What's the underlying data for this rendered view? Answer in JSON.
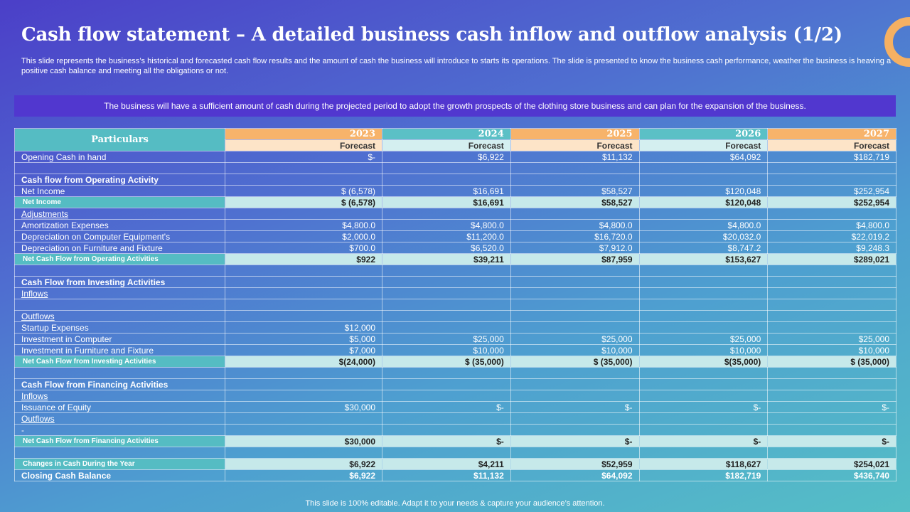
{
  "title": "Cash flow statement – A detailed business cash inflow and outflow analysis (1/2)",
  "subtitle": "This slide represents the business’s historical and forecasted cash flow results and the amount of cash the business will introduce to starts its operations. The slide is presented to know the business cash performance, weather the business is heaving a positive cash balance and meeting all the obligations or not.",
  "banner": "The business will have a sufficient amount of cash during the projected period to adopt the growth prospects of the clothing store business and can plan for the expansion of the business.",
  "footer": "This slide is 100% editable. Adapt it to your needs & capture your audience’s attention.",
  "colors": {
    "orange": "#f7b36a",
    "teal": "#55bcc3",
    "banner": "#5137cf",
    "subtotal_fill": "#c6e9ea"
  },
  "decoration": "orange-ring",
  "table": {
    "header_label": "Particulars",
    "years": [
      "2023",
      "2024",
      "2025",
      "2026",
      "2027"
    ],
    "forecast_label": "Forecast",
    "rows": [
      {
        "label": "Opening Cash in hand",
        "style": "ind-s",
        "values": [
          "$-",
          "$6,922",
          "$11,132",
          "$64,092",
          "$182,719"
        ]
      },
      {
        "label": "",
        "style": "blank",
        "values": [
          "",
          "",
          "",
          "",
          ""
        ]
      },
      {
        "label": "Cash flow from Operating Activity",
        "style": "section",
        "values": [
          "",
          "",
          "",
          "",
          ""
        ]
      },
      {
        "label": "Net Income",
        "style": "ind",
        "values": [
          "$ (6,578)",
          "$16,691",
          "$58,527",
          "$120,048",
          "$252,954"
        ]
      },
      {
        "label": "Net Income",
        "style": "subtotal",
        "values": [
          "$ (6,578)",
          "$16,691",
          "$58,527",
          "$120,048",
          "$252,954"
        ]
      },
      {
        "label": "Adjustments",
        "style": "underline",
        "values": [
          "",
          "",
          "",
          "",
          ""
        ]
      },
      {
        "label": "Amortization Expenses",
        "style": "ind",
        "values": [
          "$4,800.0",
          "$4,800.0",
          "$4,800.0",
          "$4,800.0",
          "$4,800.0"
        ]
      },
      {
        "label": "Depreciation on Computer Equipment's",
        "style": "ind",
        "values": [
          "$2,000.0",
          "$11,200.0",
          "$16,720.0",
          "$20,032.0",
          "$22,019.2"
        ]
      },
      {
        "label": "Depreciation on Furniture and Fixture",
        "style": "ind",
        "values": [
          "$700.0",
          "$6,520.0",
          "$7,912.0",
          "$8,747.2",
          "$9,248.3"
        ]
      },
      {
        "label": "Net Cash Flow from Operating Activities",
        "style": "subtotal",
        "values": [
          "$922",
          "$39,211",
          "$87,959",
          "$153,627",
          "$289,021"
        ]
      },
      {
        "label": "",
        "style": "blank",
        "values": [
          "",
          "",
          "",
          "",
          ""
        ]
      },
      {
        "label": "Cash Flow from Investing Activities",
        "style": "bold",
        "values": [
          "",
          "",
          "",
          "",
          ""
        ]
      },
      {
        "label": "Inflows",
        "style": "underline",
        "values": [
          "",
          "",
          "",
          "",
          ""
        ]
      },
      {
        "label": "",
        "style": "blank",
        "values": [
          "",
          "",
          "",
          "",
          ""
        ]
      },
      {
        "label": "Outflows",
        "style": "underline",
        "values": [
          "",
          "",
          "",
          "",
          ""
        ]
      },
      {
        "label": "Startup Expenses",
        "style": "plain",
        "values": [
          "$12,000",
          "",
          "",
          "",
          ""
        ]
      },
      {
        "label": "Investment in Computer",
        "style": "plain",
        "values": [
          "$5,000",
          "$25,000",
          "$25,000",
          "$25,000",
          "$25,000"
        ]
      },
      {
        "label": "Investment in Furniture and Fixture",
        "style": "plain",
        "values": [
          "$7,000",
          "$10,000",
          "$10,000",
          "$10,000",
          "$10,000"
        ]
      },
      {
        "label": "Net Cash Flow from Investing Activities",
        "style": "subtotal",
        "values": [
          "$(24,000)",
          "$ (35,000)",
          "$ (35,000)",
          "$(35,000)",
          "$ (35,000)"
        ]
      },
      {
        "label": "",
        "style": "blank",
        "values": [
          "",
          "",
          "",
          "",
          ""
        ]
      },
      {
        "label": "Cash Flow from Financing  Activities",
        "style": "bold",
        "values": [
          "",
          "",
          "",
          "",
          ""
        ]
      },
      {
        "label": "Inflows",
        "style": "underline",
        "values": [
          "",
          "",
          "",
          "",
          ""
        ]
      },
      {
        "label": "Issuance of Equity",
        "style": "plain",
        "values": [
          "$30,000",
          "$-",
          "$-",
          "$-",
          "$-"
        ]
      },
      {
        "label": "Outflows",
        "style": "underline",
        "values": [
          "",
          "",
          "",
          "",
          ""
        ]
      },
      {
        "label": "-",
        "style": "plain",
        "values": [
          "",
          "",
          "",
          "",
          ""
        ]
      },
      {
        "label": "Net Cash Flow from Financing Activities",
        "style": "subtotal",
        "values": [
          "$30,000",
          "$-",
          "$-",
          "$-",
          "$-"
        ]
      },
      {
        "label": "",
        "style": "blank",
        "values": [
          "",
          "",
          "",
          "",
          ""
        ]
      },
      {
        "label": "Changes in Cash During the Year",
        "style": "subtotal",
        "values": [
          "$6,922",
          "$4,211",
          "$52,959",
          "$118,627",
          "$254,021"
        ]
      },
      {
        "label": "Closing Cash Balance",
        "style": "closing",
        "values": [
          "$6,922",
          "$11,132",
          "$64,092",
          "$182,719",
          "$436,740"
        ]
      }
    ]
  }
}
